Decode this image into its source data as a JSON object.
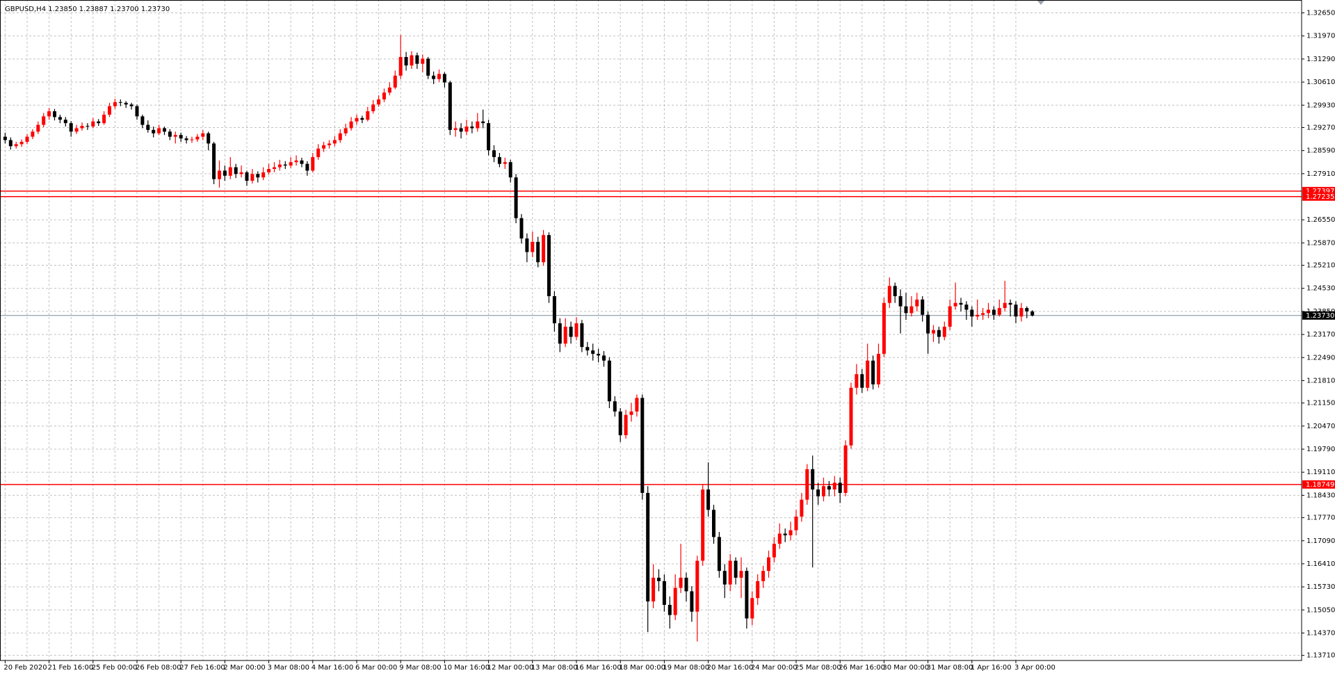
{
  "chart_data": {
    "type": "candlestick",
    "title": "GBPUSD,H4 1.23850 1.23887 1.23700 1.23730",
    "up_color": "#ff0000",
    "down_color": "#000000",
    "grid": true,
    "ylim": [
      1.1356,
      1.3303
    ],
    "yticks": [
      {
        "value": 1.3265,
        "label": "1.32650"
      },
      {
        "value": 1.3197,
        "label": "1.31970"
      },
      {
        "value": 1.3129,
        "label": "1.31290"
      },
      {
        "value": 1.3061,
        "label": "1.30610"
      },
      {
        "value": 1.2993,
        "label": "1.29930"
      },
      {
        "value": 1.2927,
        "label": "1.29270"
      },
      {
        "value": 1.2859,
        "label": "1.28590"
      },
      {
        "value": 1.2791,
        "label": "1.27910"
      },
      {
        "value": 1.2655,
        "label": "1.26550"
      },
      {
        "value": 1.2587,
        "label": "1.25870"
      },
      {
        "value": 1.2521,
        "label": "1.25210"
      },
      {
        "value": 1.2453,
        "label": "1.24530"
      },
      {
        "value": 1.2385,
        "label": "1.23850"
      },
      {
        "value": 1.2317,
        "label": "1.23170"
      },
      {
        "value": 1.2249,
        "label": "1.22490"
      },
      {
        "value": 1.2181,
        "label": "1.21810"
      },
      {
        "value": 1.2115,
        "label": "1.21150"
      },
      {
        "value": 1.2047,
        "label": "1.20470"
      },
      {
        "value": 1.1979,
        "label": "1.19790"
      },
      {
        "value": 1.1911,
        "label": "1.19110"
      },
      {
        "value": 1.1843,
        "label": "1.18430"
      },
      {
        "value": 1.1777,
        "label": "1.17770"
      },
      {
        "value": 1.1709,
        "label": "1.17090"
      },
      {
        "value": 1.1641,
        "label": "1.16410"
      },
      {
        "value": 1.1573,
        "label": "1.15730"
      },
      {
        "value": 1.1505,
        "label": "1.15050"
      },
      {
        "value": 1.1437,
        "label": "1.14370"
      },
      {
        "value": 1.1371,
        "label": "1.13710"
      }
    ],
    "hlines": [
      {
        "value": 1.27397,
        "label": "1.27397",
        "color": "#ff0000"
      },
      {
        "value": 1.27235,
        "label": "1.27235",
        "color": "#ff0000"
      },
      {
        "value": 1.18749,
        "label": "1.18749",
        "color": "#ff0000"
      }
    ],
    "price_line": {
      "value": 1.2373,
      "label": "1.23730",
      "color": "#778899"
    },
    "categories": [
      "20 Feb 2020",
      null,
      null,
      null,
      null,
      null,
      null,
      null,
      "21 Feb 16:00",
      null,
      null,
      null,
      null,
      null,
      null,
      null,
      "25 Feb 00:00",
      null,
      null,
      null,
      null,
      null,
      null,
      null,
      "26 Feb 08:00",
      null,
      null,
      null,
      null,
      null,
      null,
      null,
      "27 Feb 16:00",
      null,
      null,
      null,
      null,
      null,
      null,
      null,
      "2 Mar 00:00",
      null,
      null,
      null,
      null,
      null,
      null,
      null,
      "3 Mar 08:00",
      null,
      null,
      null,
      null,
      null,
      null,
      null,
      "4 Mar 16:00",
      null,
      null,
      null,
      null,
      null,
      null,
      null,
      "6 Mar 00:00",
      null,
      null,
      null,
      null,
      null,
      null,
      null,
      "9 Mar 08:00",
      null,
      null,
      null,
      null,
      null,
      null,
      null,
      "10 Mar 16:00",
      null,
      null,
      null,
      null,
      null,
      null,
      null,
      "12 Mar 00:00",
      null,
      null,
      null,
      null,
      null,
      null,
      null,
      "13 Mar 08:00",
      null,
      null,
      null,
      null,
      null,
      null,
      null,
      "16 Mar 16:00",
      null,
      null,
      null,
      null,
      null,
      null,
      null,
      "18 Mar 00:00",
      null,
      null,
      null,
      null,
      null,
      null,
      null,
      "19 Mar 08:00",
      null,
      null,
      null,
      null,
      null,
      null,
      null,
      "20 Mar 16:00",
      null,
      null,
      null,
      null,
      null,
      null,
      null,
      "24 Mar 00:00",
      null,
      null,
      null,
      null,
      null,
      null,
      null,
      "25 Mar 08:00",
      null,
      null,
      null,
      null,
      null,
      null,
      null,
      "26 Mar 16:00",
      null,
      null,
      null,
      null,
      null,
      null,
      null,
      "30 Mar 00:00",
      null,
      null,
      null,
      null,
      null,
      null,
      null,
      "31 Mar 08:00",
      null,
      null,
      null,
      null,
      null,
      null,
      null,
      "1 Apr 16:00",
      null,
      null,
      null,
      null,
      null,
      null,
      null,
      "3 Apr 00:00",
      null,
      null,
      null
    ],
    "ohlc": [
      [
        1.29,
        1.2912,
        1.288,
        1.289
      ],
      [
        1.289,
        1.2898,
        1.2862,
        1.2872
      ],
      [
        1.2872,
        1.2885,
        1.2865,
        1.2878
      ],
      [
        1.2878,
        1.2892,
        1.287,
        1.2885
      ],
      [
        1.2885,
        1.2908,
        1.2878,
        1.29
      ],
      [
        1.29,
        1.2922,
        1.2893,
        1.2915
      ],
      [
        1.2915,
        1.2945,
        1.2908,
        1.2935
      ],
      [
        1.2935,
        1.297,
        1.2928,
        1.296
      ],
      [
        1.296,
        1.2985,
        1.295,
        1.2975
      ],
      [
        1.2975,
        1.2982,
        1.2948,
        1.2958
      ],
      [
        1.2958,
        1.2965,
        1.294,
        1.295
      ],
      [
        1.295,
        1.2958,
        1.293,
        1.294
      ],
      [
        1.294,
        1.2946,
        1.29,
        1.2915
      ],
      [
        1.2915,
        1.2935,
        1.2908,
        1.2925
      ],
      [
        1.2925,
        1.2942,
        1.2918,
        1.2932
      ],
      [
        1.2932,
        1.294,
        1.292,
        1.293
      ],
      [
        1.293,
        1.2955,
        1.2925,
        1.2945
      ],
      [
        1.2945,
        1.2952,
        1.2932,
        1.294
      ],
      [
        1.294,
        1.2975,
        1.2935,
        1.2965
      ],
      [
        1.2965,
        1.3,
        1.2958,
        1.299
      ],
      [
        1.299,
        1.3012,
        1.2982,
        1.3002
      ],
      [
        1.3002,
        1.301,
        1.299,
        1.3
      ],
      [
        1.3,
        1.3005,
        1.2985,
        1.2995
      ],
      [
        1.2995,
        1.3,
        1.298,
        1.299
      ],
      [
        1.299,
        1.2995,
        1.295,
        1.296
      ],
      [
        1.296,
        1.2965,
        1.2925,
        1.2935
      ],
      [
        1.2935,
        1.2948,
        1.2912,
        1.292
      ],
      [
        1.292,
        1.293,
        1.2898,
        1.291
      ],
      [
        1.291,
        1.2935,
        1.2905,
        1.2925
      ],
      [
        1.2925,
        1.293,
        1.2905,
        1.2915
      ],
      [
        1.2915,
        1.2922,
        1.289,
        1.29
      ],
      [
        1.29,
        1.2915,
        1.288,
        1.2905
      ],
      [
        1.2905,
        1.2912,
        1.2885,
        1.2895
      ],
      [
        1.2895,
        1.2902,
        1.288,
        1.289
      ],
      [
        1.289,
        1.29,
        1.2882,
        1.2892
      ],
      [
        1.2892,
        1.2908,
        1.2885,
        1.29
      ],
      [
        1.29,
        1.292,
        1.289,
        1.291
      ],
      [
        1.291,
        1.2915,
        1.286,
        1.288
      ],
      [
        1.288,
        1.2885,
        1.276,
        1.2775
      ],
      [
        1.2775,
        1.283,
        1.275,
        1.28
      ],
      [
        1.28,
        1.2815,
        1.277,
        1.2785
      ],
      [
        1.2785,
        1.284,
        1.2775,
        1.281
      ],
      [
        1.281,
        1.282,
        1.2778,
        1.279
      ],
      [
        1.279,
        1.2815,
        1.278,
        1.2795
      ],
      [
        1.2795,
        1.28,
        1.2755,
        1.277
      ],
      [
        1.277,
        1.2805,
        1.2762,
        1.279
      ],
      [
        1.279,
        1.2798,
        1.2765,
        1.278
      ],
      [
        1.278,
        1.281,
        1.2772,
        1.2795
      ],
      [
        1.2795,
        1.282,
        1.2788,
        1.2805
      ],
      [
        1.2805,
        1.2825,
        1.2795,
        1.281
      ],
      [
        1.281,
        1.2832,
        1.28,
        1.2818
      ],
      [
        1.2818,
        1.2828,
        1.2805,
        1.2815
      ],
      [
        1.2815,
        1.284,
        1.2808,
        1.2825
      ],
      [
        1.2825,
        1.2845,
        1.2815,
        1.283
      ],
      [
        1.283,
        1.2838,
        1.281,
        1.282
      ],
      [
        1.282,
        1.2828,
        1.2785,
        1.28
      ],
      [
        1.28,
        1.2852,
        1.2795,
        1.284
      ],
      [
        1.284,
        1.2878,
        1.2832,
        1.2865
      ],
      [
        1.2865,
        1.2885,
        1.2855,
        1.2875
      ],
      [
        1.2875,
        1.289,
        1.2865,
        1.288
      ],
      [
        1.288,
        1.2902,
        1.2872,
        1.289
      ],
      [
        1.289,
        1.2922,
        1.2882,
        1.291
      ],
      [
        1.291,
        1.2938,
        1.2902,
        1.2925
      ],
      [
        1.2925,
        1.2958,
        1.2918,
        1.2945
      ],
      [
        1.2945,
        1.2965,
        1.2935,
        1.2955
      ],
      [
        1.2955,
        1.2962,
        1.294,
        1.295
      ],
      [
        1.295,
        1.2988,
        1.2945,
        1.2975
      ],
      [
        1.2975,
        1.3008,
        1.2968,
        1.2995
      ],
      [
        1.2995,
        1.3022,
        1.2988,
        1.301
      ],
      [
        1.301,
        1.3042,
        1.3002,
        1.303
      ],
      [
        1.303,
        1.306,
        1.3022,
        1.3045
      ],
      [
        1.3045,
        1.3095,
        1.304,
        1.308
      ],
      [
        1.308,
        1.32,
        1.307,
        1.3135
      ],
      [
        1.3135,
        1.315,
        1.3095,
        1.311
      ],
      [
        1.311,
        1.3152,
        1.31,
        1.314
      ],
      [
        1.314,
        1.3148,
        1.31,
        1.3115
      ],
      [
        1.3115,
        1.3142,
        1.309,
        1.313
      ],
      [
        1.313,
        1.3135,
        1.307,
        1.308
      ],
      [
        1.308,
        1.3092,
        1.3055,
        1.307
      ],
      [
        1.307,
        1.3098,
        1.3062,
        1.3085
      ],
      [
        1.3085,
        1.309,
        1.3045,
        1.306
      ],
      [
        1.306,
        1.3065,
        1.2905,
        1.292
      ],
      [
        1.292,
        1.2945,
        1.29,
        1.2925
      ],
      [
        1.2925,
        1.294,
        1.2895,
        1.2915
      ],
      [
        1.2915,
        1.295,
        1.2905,
        1.293
      ],
      [
        1.293,
        1.2945,
        1.291,
        1.2925
      ],
      [
        1.2925,
        1.297,
        1.2915,
        1.2945
      ],
      [
        1.2945,
        1.298,
        1.2925,
        1.294
      ],
      [
        1.294,
        1.295,
        1.2845,
        1.286
      ],
      [
        1.286,
        1.2875,
        1.2825,
        1.284
      ],
      [
        1.284,
        1.2852,
        1.281,
        1.282
      ],
      [
        1.282,
        1.2838,
        1.2805,
        1.2825
      ],
      [
        1.2825,
        1.2832,
        1.2765,
        1.278
      ],
      [
        1.278,
        1.279,
        1.2645,
        1.266
      ],
      [
        1.266,
        1.2672,
        1.2585,
        1.26
      ],
      [
        1.26,
        1.2615,
        1.253,
        1.256
      ],
      [
        1.256,
        1.262,
        1.2545,
        1.259
      ],
      [
        1.259,
        1.2605,
        1.2515,
        1.253
      ],
      [
        1.253,
        1.2625,
        1.252,
        1.261
      ],
      [
        1.261,
        1.2618,
        1.241,
        1.243
      ],
      [
        1.243,
        1.2445,
        1.2325,
        1.235
      ],
      [
        1.235,
        1.2365,
        1.2265,
        1.229
      ],
      [
        1.229,
        1.2365,
        1.228,
        1.234
      ],
      [
        1.234,
        1.2355,
        1.229,
        1.231
      ],
      [
        1.231,
        1.2368,
        1.23,
        1.235
      ],
      [
        1.235,
        1.236,
        1.2265,
        1.228
      ],
      [
        1.228,
        1.2295,
        1.2255,
        1.227
      ],
      [
        1.227,
        1.229,
        1.224,
        1.226
      ],
      [
        1.226,
        1.2275,
        1.2235,
        1.2255
      ],
      [
        1.2255,
        1.2268,
        1.2222,
        1.224
      ],
      [
        1.224,
        1.225,
        1.21,
        1.212
      ],
      [
        1.212,
        1.2135,
        1.2075,
        1.209
      ],
      [
        1.209,
        1.21,
        1.2,
        1.202
      ],
      [
        1.202,
        1.2095,
        1.201,
        1.208
      ],
      [
        1.208,
        1.2115,
        1.206,
        1.209
      ],
      [
        1.209,
        1.214,
        1.2075,
        1.213
      ],
      [
        1.213,
        1.214,
        1.183,
        1.185
      ],
      [
        1.185,
        1.187,
        1.144,
        1.153
      ],
      [
        1.153,
        1.164,
        1.151,
        1.16
      ],
      [
        1.16,
        1.1625,
        1.156,
        1.159
      ],
      [
        1.159,
        1.161,
        1.15,
        1.152
      ],
      [
        1.152,
        1.1545,
        1.145,
        1.149
      ],
      [
        1.149,
        1.161,
        1.1475,
        1.157
      ],
      [
        1.157,
        1.17,
        1.1555,
        1.16
      ],
      [
        1.16,
        1.1615,
        1.153,
        1.156
      ],
      [
        1.156,
        1.1575,
        1.147,
        1.15
      ],
      [
        1.15,
        1.1665,
        1.1412,
        1.165
      ],
      [
        1.165,
        1.1875,
        1.1635,
        1.186
      ],
      [
        1.186,
        1.194,
        1.178,
        1.18
      ],
      [
        1.18,
        1.1815,
        1.17,
        1.172
      ],
      [
        1.172,
        1.1735,
        1.16,
        1.162
      ],
      [
        1.162,
        1.164,
        1.154,
        1.158
      ],
      [
        1.158,
        1.167,
        1.156,
        1.165
      ],
      [
        1.165,
        1.166,
        1.158,
        1.16
      ],
      [
        1.16,
        1.166,
        1.154,
        1.162
      ],
      [
        1.162,
        1.163,
        1.145,
        1.148
      ],
      [
        1.148,
        1.156,
        1.146,
        1.154
      ],
      [
        1.154,
        1.161,
        1.152,
        1.159
      ],
      [
        1.159,
        1.1635,
        1.157,
        1.162
      ],
      [
        1.162,
        1.168,
        1.16,
        1.166
      ],
      [
        1.166,
        1.172,
        1.1645,
        1.17
      ],
      [
        1.17,
        1.176,
        1.1685,
        1.173
      ],
      [
        1.173,
        1.1745,
        1.1705,
        1.1725
      ],
      [
        1.1725,
        1.1765,
        1.171,
        1.174
      ],
      [
        1.174,
        1.18,
        1.1725,
        1.178
      ],
      [
        1.178,
        1.185,
        1.1765,
        1.183
      ],
      [
        1.183,
        1.1935,
        1.1815,
        1.192
      ],
      [
        1.192,
        1.196,
        1.163,
        1.186
      ],
      [
        1.186,
        1.188,
        1.1815,
        1.184
      ],
      [
        1.184,
        1.1895,
        1.1825,
        1.187
      ],
      [
        1.187,
        1.1885,
        1.184,
        1.186
      ],
      [
        1.186,
        1.19,
        1.184,
        1.188
      ],
      [
        1.188,
        1.1895,
        1.182,
        1.185
      ],
      [
        1.185,
        1.2005,
        1.184,
        1.199
      ],
      [
        1.199,
        1.2175,
        1.198,
        1.216
      ],
      [
        1.216,
        1.223,
        1.214,
        1.22
      ],
      [
        1.22,
        1.2215,
        1.2145,
        1.216
      ],
      [
        1.216,
        1.229,
        1.215,
        1.224
      ],
      [
        1.224,
        1.2255,
        1.2155,
        1.217
      ],
      [
        1.217,
        1.229,
        1.216,
        1.226
      ],
      [
        1.226,
        1.2425,
        1.225,
        1.241
      ],
      [
        1.241,
        1.2485,
        1.2395,
        1.246
      ],
      [
        1.246,
        1.247,
        1.241,
        1.243
      ],
      [
        1.243,
        1.245,
        1.232,
        1.24
      ],
      [
        1.24,
        1.244,
        1.236,
        1.238
      ],
      [
        1.238,
        1.243,
        1.237,
        1.24
      ],
      [
        1.24,
        1.244,
        1.2385,
        1.242
      ],
      [
        1.242,
        1.243,
        1.2355,
        1.2375
      ],
      [
        1.2375,
        1.2385,
        1.226,
        1.232
      ],
      [
        1.232,
        1.2345,
        1.2295,
        1.233
      ],
      [
        1.233,
        1.234,
        1.229,
        1.231
      ],
      [
        1.231,
        1.2355,
        1.23,
        1.234
      ],
      [
        1.234,
        1.242,
        1.233,
        1.24
      ],
      [
        1.24,
        1.247,
        1.239,
        1.241
      ],
      [
        1.241,
        1.2425,
        1.2385,
        1.2405
      ],
      [
        1.2405,
        1.2415,
        1.236,
        1.239
      ],
      [
        1.239,
        1.24,
        1.234,
        1.237
      ],
      [
        1.237,
        1.242,
        1.236,
        1.2375
      ],
      [
        1.2375,
        1.2395,
        1.236,
        1.238
      ],
      [
        1.238,
        1.241,
        1.2365,
        1.239
      ],
      [
        1.239,
        1.24,
        1.236,
        1.2375
      ],
      [
        1.2375,
        1.242,
        1.237,
        1.2395
      ],
      [
        1.2395,
        1.2475,
        1.2385,
        1.241
      ],
      [
        1.241,
        1.242,
        1.237,
        1.2405
      ],
      [
        1.2405,
        1.2415,
        1.235,
        1.237
      ],
      [
        1.237,
        1.241,
        1.2355,
        1.2395
      ],
      [
        1.2395,
        1.24,
        1.2365,
        1.2385
      ],
      [
        1.2385,
        1.23887,
        1.237,
        1.2373
      ]
    ]
  }
}
